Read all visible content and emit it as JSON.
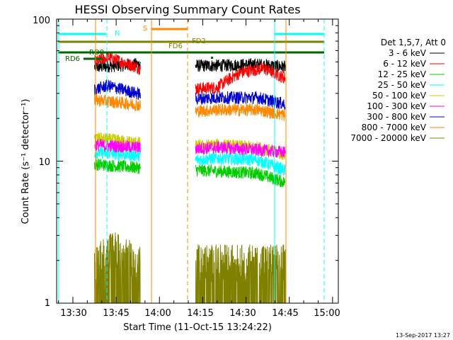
{
  "chart_data": {
    "type": "line",
    "title": "HESSI Observing Summary Count Rates",
    "xlabel": "Start Time (11-Oct-15 13:24:22)",
    "ylabel": "Count Rate (s⁻¹ detector⁻¹)",
    "ylog": true,
    "ylim": [
      1,
      100
    ],
    "xlim": [
      "13:24:22",
      "15:02:00"
    ],
    "x_ticks": [
      "13:30",
      "13:45",
      "14:00",
      "14:15",
      "14:30",
      "14:45",
      "15:00"
    ],
    "y_ticks": [
      "1",
      "10",
      "100"
    ],
    "legend_header": "Det 1,5,7, Att 0",
    "legend_position": "right",
    "series": [
      {
        "name": "3 - 6 keV",
        "color": "#000000",
        "values": [
          [
            "13:38",
            46
          ],
          [
            "13:52",
            48
          ],
          [
            "14:06",
            47
          ],
          [
            "14:20",
            47
          ],
          [
            "14:34",
            48
          ],
          [
            "14:44",
            46
          ]
        ]
      },
      {
        "name": "6 - 12 keV",
        "color": "#ff0000",
        "values": [
          [
            "13:38",
            50
          ],
          [
            "13:42",
            54
          ],
          [
            "13:52",
            46
          ],
          [
            "14:08",
            32
          ],
          [
            "14:20",
            33
          ],
          [
            "14:28",
            42
          ],
          [
            "14:36",
            45
          ],
          [
            "14:44",
            38
          ]
        ]
      },
      {
        "name": "12 - 25 keV",
        "color": "#00cc00",
        "values": [
          [
            "13:38",
            9.5
          ],
          [
            "13:52",
            9.0
          ],
          [
            "14:06",
            8.8
          ],
          [
            "14:20",
            8.5
          ],
          [
            "14:34",
            8.2
          ],
          [
            "14:44",
            7.0
          ]
        ]
      },
      {
        "name": "25 - 50 keV",
        "color": "#00ffff",
        "values": [
          [
            "13:38",
            11.5
          ],
          [
            "13:52",
            11.0
          ],
          [
            "14:06",
            10.0
          ],
          [
            "14:20",
            10.5
          ],
          [
            "14:34",
            10.2
          ],
          [
            "14:44",
            8.5
          ]
        ]
      },
      {
        "name": "50 - 100 keV",
        "color": "#cccc00",
        "values": [
          [
            "13:38",
            14.5
          ],
          [
            "13:52",
            13.5
          ],
          [
            "14:06",
            12.5
          ],
          [
            "14:20",
            13.0
          ],
          [
            "14:34",
            12.5
          ],
          [
            "14:44",
            11.0
          ]
        ]
      },
      {
        "name": "100 - 300 keV",
        "color": "#ff00ff",
        "values": [
          [
            "13:38",
            13.0
          ],
          [
            "13:52",
            12.5
          ],
          [
            "14:06",
            12.0
          ],
          [
            "14:20",
            12.5
          ],
          [
            "14:34",
            12.0
          ],
          [
            "14:44",
            11.5
          ]
        ]
      },
      {
        "name": "300 - 800 keV",
        "color": "#0000cc",
        "values": [
          [
            "13:38",
            32
          ],
          [
            "13:42",
            34
          ],
          [
            "13:52",
            30
          ],
          [
            "14:06",
            27
          ],
          [
            "14:20",
            28
          ],
          [
            "14:34",
            28
          ],
          [
            "14:44",
            25
          ]
        ]
      },
      {
        "name": "800 - 7000 keV",
        "color": "#ff8800",
        "values": [
          [
            "13:38",
            27
          ],
          [
            "13:52",
            25
          ],
          [
            "14:06",
            22
          ],
          [
            "14:20",
            23
          ],
          [
            "14:34",
            23
          ],
          [
            "14:44",
            21
          ]
        ]
      },
      {
        "name": "7000 - 20000 keV",
        "color": "#808000",
        "values": [
          [
            "13:38",
            2.0
          ],
          [
            "13:44",
            2.5
          ],
          [
            "13:52",
            2.0
          ],
          [
            "14:12",
            2.0
          ],
          [
            "14:24",
            2.0
          ],
          [
            "14:36",
            2.0
          ],
          [
            "14:44",
            2.0
          ]
        ]
      }
    ],
    "flags": [
      {
        "label": "N",
        "color": "#00ffff"
      },
      {
        "label": "S",
        "color": "#ff8800"
      },
      {
        "label": "FD2",
        "color": "#808000"
      },
      {
        "label": "FD6",
        "color": "#808000"
      },
      {
        "label": "RD0",
        "color": "#006600"
      },
      {
        "label": "RD6",
        "color": "#006600"
      }
    ]
  },
  "footer": {
    "timestamp": "13-Sep-2017 13:27"
  }
}
